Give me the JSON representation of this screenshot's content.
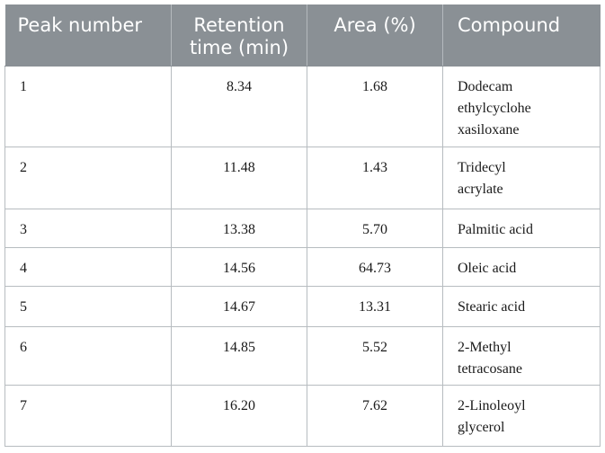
{
  "table": {
    "headers": {
      "peak": "Peak number",
      "retention": "Retention time (min)",
      "area": "Area (%)",
      "compound": "Compound"
    },
    "rows": [
      {
        "peak": "1",
        "retention": "8.34",
        "area": "1.68",
        "compound_lines": [
          "Dodecam",
          "ethylcyclohe",
          "xasiloxane"
        ]
      },
      {
        "peak": "2",
        "retention": "11.48",
        "area": "1.43",
        "compound_lines": [
          "Tridecyl",
          "acrylate"
        ]
      },
      {
        "peak": "3",
        "retention": "13.38",
        "area": "5.70",
        "compound_lines": [
          "Palmitic acid"
        ]
      },
      {
        "peak": "4",
        "retention": "14.56",
        "area": "64.73",
        "compound_lines": [
          "Oleic acid"
        ]
      },
      {
        "peak": "5",
        "retention": "14.67",
        "area": "13.31",
        "compound_lines": [
          "Stearic acid"
        ]
      },
      {
        "peak": "6",
        "retention": "14.85",
        "area": "5.52",
        "compound_lines": [
          "2-Methyl",
          "tetracosane"
        ]
      },
      {
        "peak": "7",
        "retention": "16.20",
        "area": "7.62",
        "compound_lines": [
          "2-Linoleoyl",
          "glycerol"
        ]
      }
    ]
  },
  "colors": {
    "header_bg": "#8a9095",
    "header_text": "#ffffff",
    "grid": "#b7bcc0"
  }
}
